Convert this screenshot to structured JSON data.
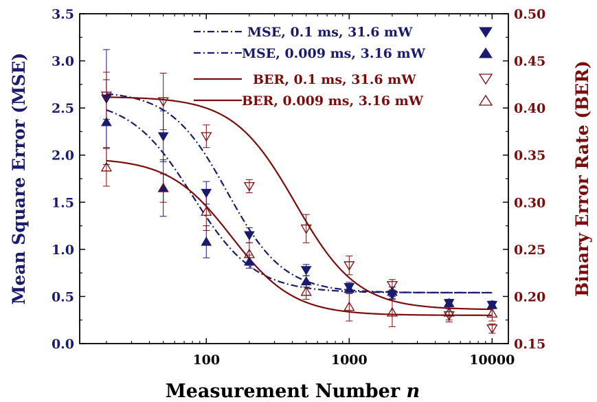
{
  "chart_data": {
    "type": "scatter",
    "xlabel": "Measurement Number",
    "xlabel_var": "n",
    "ylabel_left": "Mean Square Error (MSE)",
    "ylabel_right": "Binary Error Rate (BER)",
    "x_scale": "log",
    "xlim": [
      13,
      13000
    ],
    "x_ticks": [
      100,
      1000,
      10000
    ],
    "x_tick_labels": [
      "100",
      "1000",
      "10000"
    ],
    "ylim_left": [
      0,
      3.5
    ],
    "y_ticks_left": [
      "0.0",
      "0.5",
      "1.0",
      "1.5",
      "2.0",
      "2.5",
      "3.0",
      "3.5"
    ],
    "ylim_right": [
      0.15,
      0.5
    ],
    "y_ticks_right": [
      "0.15",
      "0.20",
      "0.25",
      "0.30",
      "0.35",
      "0.40",
      "0.45",
      "0.50"
    ],
    "legend_position": "top-right",
    "colors": {
      "mse": "#1a1a6e",
      "ber": "#7a0c0c"
    },
    "series": [
      {
        "name": "MSE, 0.1 ms, 31.6 mW",
        "axis": "left",
        "marker": "down-triangle-filled",
        "line": "dash-dot",
        "x": [
          20,
          50,
          100,
          200,
          500,
          1000,
          2000,
          5000,
          10000
        ],
        "y": [
          2.6,
          2.2,
          1.6,
          1.15,
          0.78,
          0.6,
          0.52,
          0.43,
          0.41
        ],
        "err": [
          0.52,
          0.27,
          0.12,
          0.08,
          0.06,
          0.05,
          0.05,
          0.04,
          0.04
        ],
        "fit": {
          "A1": 2.68,
          "A2": 0.54,
          "x0": 140,
          "p": 2.2
        }
      },
      {
        "name": "MSE, 0.009 ms, 3.16 mW",
        "axis": "left",
        "marker": "up-triangle-filled",
        "line": "dash-dot",
        "x": [
          20,
          50,
          100,
          200,
          500,
          1000,
          2000,
          5000,
          10000
        ],
        "y": [
          2.35,
          1.65,
          1.08,
          0.87,
          0.66,
          0.58,
          0.55,
          0.43,
          0.41
        ],
        "err": [
          0.45,
          0.3,
          0.17,
          0.07,
          0.06,
          0.05,
          0.05,
          0.04,
          0.04
        ],
        "fit": {
          "A1": 2.6,
          "A2": 0.54,
          "x0": 80,
          "p": 2.0
        }
      },
      {
        "name": "BER, 0.1 ms, 31.6 mW",
        "axis": "right",
        "marker": "down-triangle-open",
        "line": "solid",
        "x": [
          20,
          50,
          100,
          200,
          500,
          1000,
          2000,
          5000,
          10000
        ],
        "y": [
          0.413,
          0.407,
          0.37,
          0.317,
          0.272,
          0.233,
          0.212,
          0.18,
          0.166
        ],
        "err": [
          0.025,
          0.03,
          0.012,
          0.007,
          0.015,
          0.01,
          0.006,
          0.007,
          0.005
        ],
        "fit": {
          "A1": 0.412,
          "A2": 0.186,
          "x0": 420,
          "p": 2.0
        }
      },
      {
        "name": "BER, 0.009 ms, 3.16 mW",
        "axis": "right",
        "marker": "up-triangle-open",
        "line": "solid",
        "x": [
          20,
          50,
          100,
          200,
          500,
          1000,
          2000,
          5000,
          10000
        ],
        "y": [
          0.337,
          0.315,
          0.29,
          0.245,
          0.205,
          0.189,
          0.183,
          0.183,
          0.182
        ],
        "err": [
          0.02,
          0.015,
          0.02,
          0.012,
          0.008,
          0.015,
          0.015,
          0.008,
          0.008
        ],
        "fit": {
          "A1": 0.347,
          "A2": 0.18,
          "x0": 150,
          "p": 2.0
        }
      }
    ]
  }
}
